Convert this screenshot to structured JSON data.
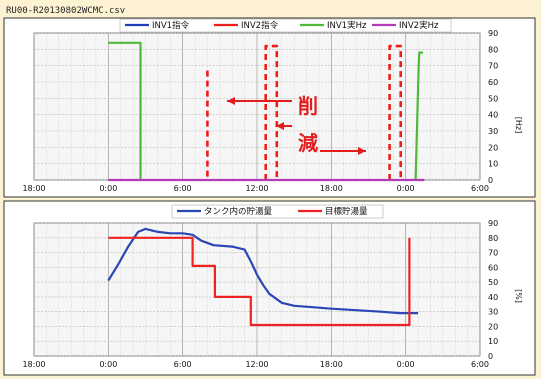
{
  "file_name": "RU00-R20130802WCMC.csv",
  "colors": {
    "inv1_cmd": "#1d3fb8",
    "inv2_cmd": "#ef1c1c",
    "inv1_hz": "#4fba3a",
    "inv2_hz": "#b23cb8",
    "tank_storage": "#2b47b5",
    "target_storage": "#ee2222",
    "annotation": "#e31d1d"
  },
  "annotation": {
    "char1": "削",
    "char2": "減"
  },
  "chart_data": [
    {
      "type": "line",
      "legend_position": "top",
      "unit_label": "[Hz]",
      "x_tick_labels": [
        "18:00",
        "0:00",
        "6:00",
        "12:00",
        "18:00",
        "0:00",
        "6:00"
      ],
      "x_ticks_hours": [
        -6,
        0,
        6,
        12,
        18,
        24,
        30
      ],
      "xlim_hours": [
        -6,
        30
      ],
      "ylim": [
        0,
        90
      ],
      "y_ticks": [
        0,
        10,
        20,
        30,
        40,
        50,
        60,
        70,
        80,
        90
      ],
      "grid": true,
      "series": [
        {
          "name": "INV1指令",
          "points": []
        },
        {
          "name": "INV2指令",
          "dashed": true,
          "segments": [
            [
              [
                8.0,
                67
              ],
              [
                8.0,
                0
              ]
            ],
            [
              [
                12.7,
                0
              ],
              [
                12.7,
                82
              ],
              [
                13.6,
                82
              ],
              [
                13.6,
                0
              ]
            ],
            [
              [
                22.7,
                0
              ],
              [
                22.7,
                82
              ],
              [
                23.6,
                82
              ],
              [
                23.6,
                0
              ]
            ]
          ]
        },
        {
          "name": "INV1実Hz",
          "segments": [
            [
              [
                0.0,
                84
              ],
              [
                2.6,
                84
              ],
              [
                2.6,
                0
              ]
            ],
            [
              [
                24.8,
                0
              ],
              [
                25.05,
                70
              ],
              [
                25.1,
                78
              ],
              [
                25.4,
                78
              ]
            ]
          ]
        },
        {
          "name": "INV2実Hz",
          "segments": [
            [
              [
                0.0,
                0
              ],
              [
                25.5,
                0
              ]
            ]
          ]
        }
      ]
    },
    {
      "type": "line",
      "legend_position": "top",
      "unit_label": "[%]",
      "x_tick_labels": [
        "18:00",
        "0:00",
        "6:00",
        "12:00",
        "18:00",
        "0:00",
        "6:00"
      ],
      "x_ticks_hours": [
        -6,
        0,
        6,
        12,
        18,
        24,
        30
      ],
      "xlim_hours": [
        -6,
        30
      ],
      "ylim": [
        0,
        90
      ],
      "y_ticks": [
        0,
        10,
        20,
        30,
        40,
        50,
        60,
        70,
        80,
        90
      ],
      "grid": true,
      "series": [
        {
          "name": "タンク内の貯湯量",
          "points": [
            [
              0.0,
              51
            ],
            [
              0.8,
              62
            ],
            [
              1.6,
              74
            ],
            [
              2.4,
              84
            ],
            [
              3.0,
              86
            ],
            [
              4.0,
              84
            ],
            [
              5.0,
              83
            ],
            [
              6.0,
              83
            ],
            [
              6.8,
              82
            ],
            [
              7.5,
              78
            ],
            [
              8.5,
              75
            ],
            [
              10.0,
              74
            ],
            [
              11.0,
              72
            ],
            [
              11.5,
              64
            ],
            [
              12.0,
              55
            ],
            [
              12.5,
              48
            ],
            [
              13.0,
              42
            ],
            [
              14.0,
              36
            ],
            [
              15.0,
              34
            ],
            [
              16.5,
              33
            ],
            [
              18.0,
              32
            ],
            [
              20.0,
              31
            ],
            [
              22.0,
              30
            ],
            [
              23.5,
              29
            ],
            [
              25.0,
              29
            ]
          ]
        },
        {
          "name": "目標貯湯量",
          "points": [
            [
              0.0,
              80
            ],
            [
              6.8,
              80
            ],
            [
              6.8,
              61
            ],
            [
              8.6,
              61
            ],
            [
              8.6,
              40
            ],
            [
              11.5,
              40
            ],
            [
              11.5,
              21
            ],
            [
              24.3,
              21
            ],
            [
              24.3,
              80
            ]
          ]
        }
      ]
    }
  ]
}
